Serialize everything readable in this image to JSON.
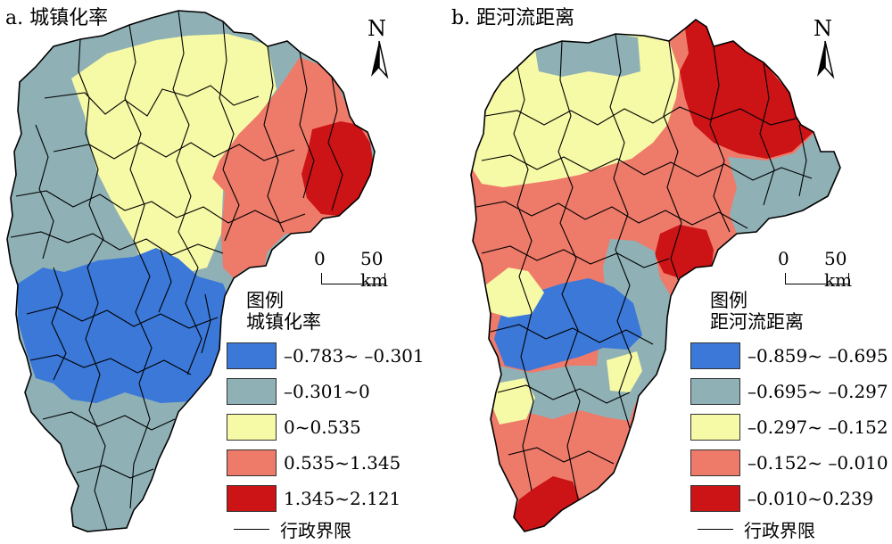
{
  "colors": {
    "blue": "#3b78d8",
    "teal": "#8fb1b6",
    "yellow": "#f6f9a6",
    "salmon": "#ee7a6a",
    "red": "#cc1316",
    "boundary": "#000000"
  },
  "north_label": "N",
  "scale": {
    "zero": "0",
    "distance": "50 km"
  },
  "boundary_label": "行政界限",
  "panels": [
    {
      "title": "a. 城镇化率",
      "legend": {
        "heading": "图例",
        "subtitle": "城镇化率",
        "items": [
          {
            "label": "–0.783~ –0.301",
            "color": "#3b78d8"
          },
          {
            "label": "–0.301~0",
            "color": "#8fb1b6"
          },
          {
            "label": "0~0.535",
            "color": "#f6f9a6"
          },
          {
            "label": "0.535~1.345",
            "color": "#ee7a6a"
          },
          {
            "label": "1.345~2.121",
            "color": "#cc1316"
          }
        ]
      }
    },
    {
      "title": "b. 距河流距离",
      "legend": {
        "heading": "图例",
        "subtitle": "距河流距离",
        "items": [
          {
            "label": "–0.859~ –0.695",
            "color": "#3b78d8"
          },
          {
            "label": "–0.695~ –0.297",
            "color": "#8fb1b6"
          },
          {
            "label": "–0.297~ –0.152",
            "color": "#f6f9a6"
          },
          {
            "label": "–0.152~ –0.010",
            "color": "#ee7a6a"
          },
          {
            "label": "–0.010~0.239",
            "color": "#cc1316"
          }
        ]
      }
    }
  ]
}
